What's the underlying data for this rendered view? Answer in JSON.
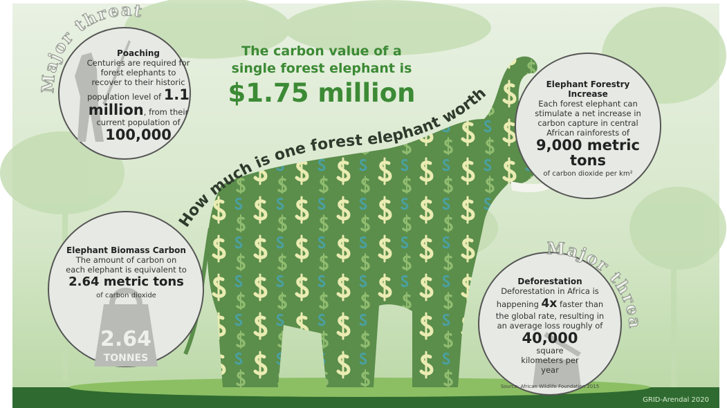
{
  "threat_labels": [
    "Major threats",
    "Major threats"
  ],
  "headline": {
    "intro": "The carbon value of a single forest elephant is",
    "value": "$1.75 million"
  },
  "question": "How much is one forest elephant worth?",
  "poaching": {
    "title": "Poaching",
    "text": "Centuries are required for forest elephants to recover to their historic population level of",
    "figure": "1.1 million",
    "middle": ", from their current population of",
    "figure2": "100,000"
  },
  "forestry": {
    "title": "Elephant Forestry Increase",
    "text": "Each forest elephant can stimulate a net increase in carbon capture in central African rainforests of",
    "figure": "9,000 metric tons",
    "unit": "of carbon dioxide per km²"
  },
  "biomass": {
    "title": "Elephant Biomass Carbon",
    "text": "The amount of carbon on each elephant is equivalent to",
    "figure": "2.64 metric tons",
    "unit": "of carbon dioxide",
    "weight_value": "2.64",
    "weight_unit": "TONNES"
  },
  "deforestation": {
    "title": "Deforestation",
    "text": "Deforestation in Africa is happening",
    "figure": "4x",
    "middle": "faster than the global rate, resulting in an average loss roughly of",
    "figure2": "40,000",
    "unit": "square kilometers per year",
    "source": "Source: African Wildlife Foundation 2015"
  },
  "credit": "GRID-Arendal 2020"
}
